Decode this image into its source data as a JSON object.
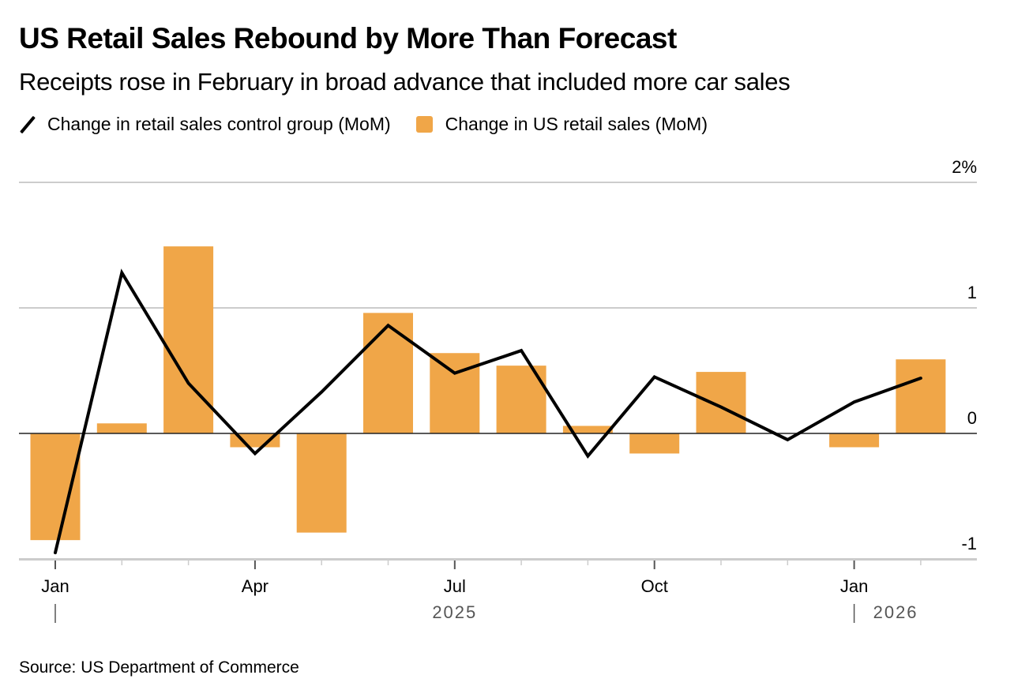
{
  "header": {
    "title": "US Retail Sales Rebound by More Than Forecast",
    "subtitle": "Receipts rose in February in broad advance that included more car sales"
  },
  "legend": [
    {
      "label": "Change in retail sales control group (MoM)",
      "type": "line",
      "color": "#000000"
    },
    {
      "label": "Change in US retail sales (MoM)",
      "type": "bar",
      "color": "#F0A648"
    }
  ],
  "footer": {
    "source": "Source: US Department of Commerce"
  },
  "chart_data": {
    "type": "bar",
    "title": "US Retail Sales Rebound by More Than Forecast",
    "subtitle": "Receipts rose in February in broad advance that included more car sales",
    "categories": [
      "Jan 2025",
      "Feb 2025",
      "Mar 2025",
      "Apr 2025",
      "May 2025",
      "Jun 2025",
      "Jul 2025",
      "Aug 2025",
      "Sep 2025",
      "Oct 2025",
      "Nov 2025",
      "Dec 2025",
      "Jan 2026",
      "Feb 2026"
    ],
    "series": [
      {
        "name": "Change in US retail sales (MoM)",
        "type": "bar",
        "color": "#F0A648",
        "values": [
          -0.85,
          0.08,
          1.49,
          -0.11,
          -0.79,
          0.96,
          0.64,
          0.54,
          0.06,
          -0.16,
          0.49,
          null,
          -0.11,
          0.59
        ]
      },
      {
        "name": "Change in retail sales control group (MoM)",
        "type": "line",
        "color": "#000000",
        "values": [
          -0.95,
          1.28,
          0.4,
          -0.16,
          0.33,
          0.86,
          0.48,
          0.66,
          -0.18,
          0.45,
          0.21,
          -0.05,
          0.25,
          0.44
        ]
      }
    ],
    "xlabel": "",
    "ylabel": "",
    "ylim": [
      -1,
      2
    ],
    "y_ticks": [
      {
        "value": 2,
        "label": "2%"
      },
      {
        "value": 1,
        "label": "1"
      },
      {
        "value": 0,
        "label": "0"
      },
      {
        "value": -1,
        "label": "-1"
      }
    ],
    "x_tick_labels": [
      {
        "index": 0,
        "label": "Jan"
      },
      {
        "index": 3,
        "label": "Apr"
      },
      {
        "index": 6,
        "label": "Jul"
      },
      {
        "index": 9,
        "label": "Oct"
      },
      {
        "index": 12,
        "label": "Jan"
      }
    ],
    "year_labels": [
      {
        "index": 6,
        "label": "2025"
      },
      {
        "index": 12,
        "label": "2026"
      }
    ],
    "grid": true,
    "y_axis_side": "right",
    "legend_position": "top-left"
  }
}
